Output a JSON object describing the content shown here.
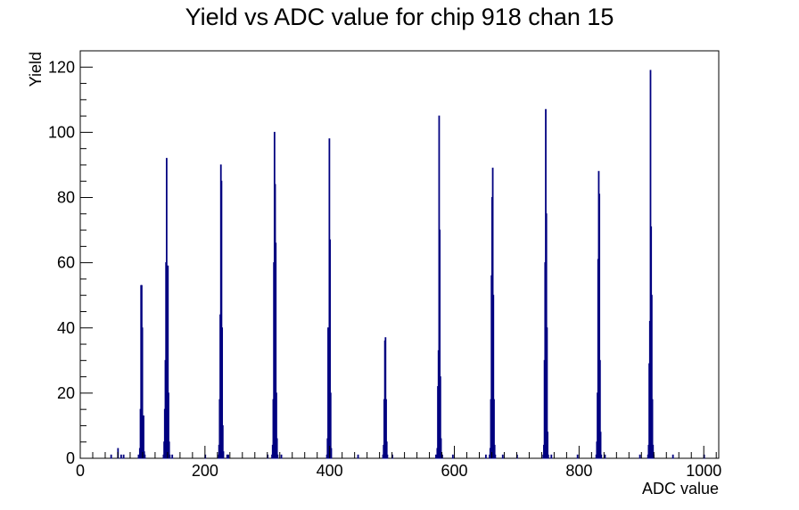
{
  "chart_data": {
    "type": "histogram",
    "title": "Yield vs ADC value for chip 918 chan 15",
    "xlabel": "ADC value",
    "ylabel": "Yield",
    "xlim": [
      0,
      1024
    ],
    "ylim": [
      0,
      125
    ],
    "x_ticks": [
      0,
      200,
      400,
      600,
      800,
      1000
    ],
    "y_ticks": [
      0,
      20,
      40,
      60,
      80,
      100,
      120
    ],
    "line_color": "#000080",
    "grid": false,
    "bins": [
      [
        49,
        1
      ],
      [
        60,
        3
      ],
      [
        65,
        1
      ],
      [
        69,
        1
      ],
      [
        93,
        1
      ],
      [
        95,
        3
      ],
      [
        96,
        15
      ],
      [
        97,
        53
      ],
      [
        98,
        53
      ],
      [
        99,
        40
      ],
      [
        100,
        10
      ],
      [
        101,
        13
      ],
      [
        102,
        2
      ],
      [
        103,
        1
      ],
      [
        133,
        1
      ],
      [
        134,
        5
      ],
      [
        135,
        15
      ],
      [
        136,
        30
      ],
      [
        137,
        60
      ],
      [
        138,
        92
      ],
      [
        139,
        44
      ],
      [
        140,
        59
      ],
      [
        141,
        20
      ],
      [
        142,
        5
      ],
      [
        143,
        1
      ],
      [
        147,
        1
      ],
      [
        200,
        1
      ],
      [
        221,
        1
      ],
      [
        222,
        4
      ],
      [
        223,
        18
      ],
      [
        224,
        44
      ],
      [
        225,
        90
      ],
      [
        226,
        85
      ],
      [
        227,
        40
      ],
      [
        228,
        10
      ],
      [
        229,
        2
      ],
      [
        235,
        1
      ],
      [
        237,
        1
      ],
      [
        300,
        1
      ],
      [
        307,
        1
      ],
      [
        308,
        4
      ],
      [
        309,
        18
      ],
      [
        310,
        60
      ],
      [
        311,
        100
      ],
      [
        312,
        84
      ],
      [
        313,
        66
      ],
      [
        314,
        20
      ],
      [
        315,
        6
      ],
      [
        316,
        1
      ],
      [
        322,
        1
      ],
      [
        395,
        1
      ],
      [
        396,
        6
      ],
      [
        397,
        40
      ],
      [
        398,
        28
      ],
      [
        399,
        98
      ],
      [
        400,
        67
      ],
      [
        401,
        20
      ],
      [
        402,
        3
      ],
      [
        445,
        1
      ],
      [
        485,
        1
      ],
      [
        486,
        4
      ],
      [
        487,
        18
      ],
      [
        488,
        36
      ],
      [
        489,
        37
      ],
      [
        490,
        18
      ],
      [
        491,
        5
      ],
      [
        492,
        1
      ],
      [
        500,
        1
      ],
      [
        570,
        1
      ],
      [
        572,
        3
      ],
      [
        573,
        22
      ],
      [
        574,
        33
      ],
      [
        575,
        105
      ],
      [
        576,
        70
      ],
      [
        577,
        25
      ],
      [
        578,
        6
      ],
      [
        580,
        1
      ],
      [
        597,
        1
      ],
      [
        650,
        1
      ],
      [
        656,
        1
      ],
      [
        657,
        3
      ],
      [
        658,
        18
      ],
      [
        659,
        56
      ],
      [
        660,
        80
      ],
      [
        661,
        89
      ],
      [
        662,
        50
      ],
      [
        663,
        18
      ],
      [
        664,
        4
      ],
      [
        665,
        1
      ],
      [
        677,
        1
      ],
      [
        700,
        1
      ],
      [
        742,
        1
      ],
      [
        743,
        4
      ],
      [
        744,
        30
      ],
      [
        745,
        60
      ],
      [
        746,
        107
      ],
      [
        747,
        75
      ],
      [
        748,
        40
      ],
      [
        749,
        8
      ],
      [
        750,
        1
      ],
      [
        755,
        1
      ],
      [
        797,
        1
      ],
      [
        827,
        1
      ],
      [
        828,
        5
      ],
      [
        829,
        20
      ],
      [
        830,
        61
      ],
      [
        831,
        88
      ],
      [
        832,
        81
      ],
      [
        833,
        30
      ],
      [
        834,
        8
      ],
      [
        835,
        1
      ],
      [
        841,
        1
      ],
      [
        897,
        1
      ],
      [
        910,
        1
      ],
      [
        911,
        4
      ],
      [
        912,
        29
      ],
      [
        913,
        42
      ],
      [
        914,
        119
      ],
      [
        915,
        71
      ],
      [
        916,
        50
      ],
      [
        917,
        18
      ],
      [
        918,
        4
      ],
      [
        919,
        1
      ],
      [
        950,
        1
      ],
      [
        1000,
        1
      ]
    ]
  }
}
